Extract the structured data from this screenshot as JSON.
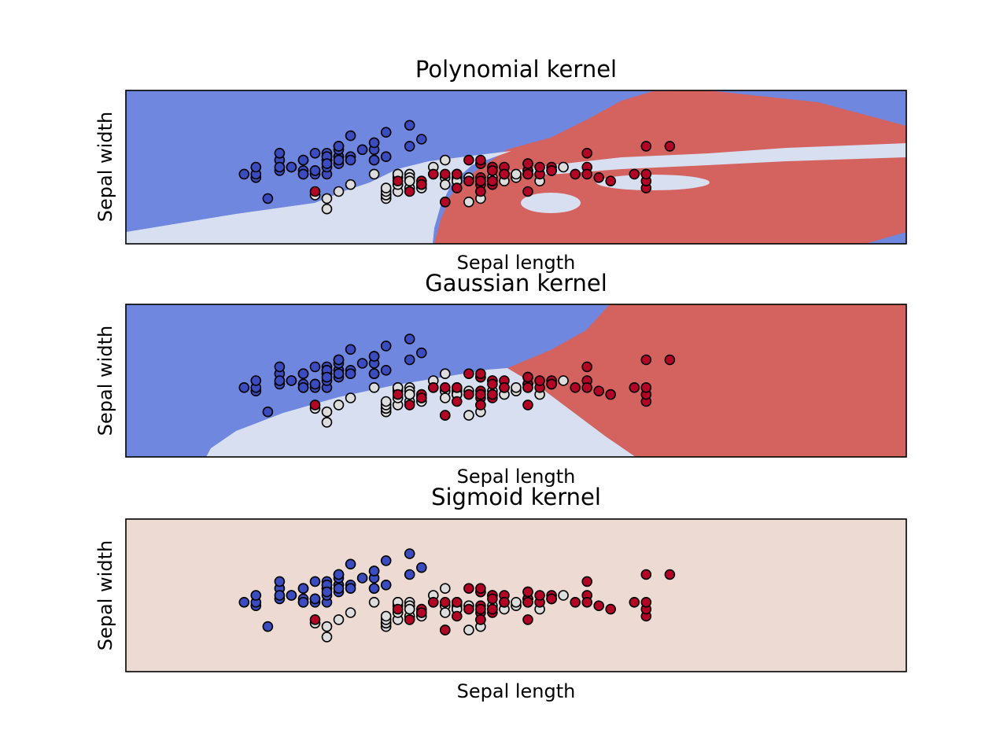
{
  "chart_data": [
    {
      "type": "scatter",
      "title": "Polynomial kernel",
      "xlabel": "Sepal length",
      "ylabel": "Sepal width",
      "xlim": [
        3.3,
        9.9
      ],
      "ylim": [
        1.0,
        5.4
      ],
      "ticks": "none",
      "decision_regions": {
        "class_0": "#6f87df",
        "class_1": "#d7dff0",
        "class_2": "#d4625f"
      }
    },
    {
      "type": "scatter",
      "title": "Gaussian kernel",
      "xlabel": "Sepal length",
      "ylabel": "Sepal width",
      "xlim": [
        3.3,
        9.9
      ],
      "ylim": [
        1.0,
        5.4
      ],
      "ticks": "none",
      "decision_regions": {
        "class_0": "#6f87df",
        "class_1": "#d7dff0",
        "class_2": "#d4625f"
      }
    },
    {
      "type": "scatter",
      "title": "Sigmoid kernel",
      "xlabel": "Sepal length",
      "ylabel": "Sepal width",
      "xlim": [
        3.3,
        9.9
      ],
      "ylim": [
        1.0,
        5.4
      ],
      "ticks": "none",
      "decision_regions": {
        "class_1": "#eddad2"
      }
    }
  ],
  "points": {
    "class_colors": [
      "#3b4cc0",
      "#dddddd",
      "#b40426"
    ],
    "edge_color": "#000000",
    "series": [
      {
        "class": 0,
        "x": [
          5.1,
          4.9,
          4.7,
          4.6,
          5.0,
          5.4,
          4.6,
          5.0,
          4.4,
          4.9,
          5.4,
          4.8,
          4.8,
          4.3,
          5.8,
          5.7,
          5.4,
          5.1,
          5.7,
          5.1,
          5.4,
          5.1,
          4.6,
          5.1,
          4.8,
          5.0,
          5.0,
          5.2,
          5.2,
          4.7,
          4.8,
          5.4,
          5.2,
          5.5,
          4.9,
          5.0,
          5.5,
          4.9,
          4.4,
          5.1,
          5.0,
          4.5,
          4.4,
          5.0,
          5.1,
          4.8,
          5.1,
          4.6,
          5.3,
          5.0
        ],
        "y": [
          3.5,
          3.0,
          3.2,
          3.1,
          3.6,
          3.9,
          3.4,
          3.4,
          2.9,
          3.1,
          3.7,
          3.4,
          3.0,
          3.0,
          4.0,
          4.4,
          3.9,
          3.5,
          3.8,
          3.8,
          3.4,
          3.7,
          3.6,
          3.3,
          3.4,
          3.0,
          3.4,
          3.5,
          3.4,
          3.2,
          3.1,
          3.4,
          4.1,
          4.2,
          3.1,
          3.2,
          3.5,
          3.6,
          3.0,
          3.4,
          3.5,
          2.3,
          3.2,
          3.5,
          3.8,
          3.0,
          3.8,
          3.2,
          3.7,
          3.3
        ]
      },
      {
        "class": 1,
        "x": [
          7.0,
          6.4,
          6.9,
          5.5,
          6.5,
          5.7,
          6.3,
          4.9,
          6.6,
          5.2,
          5.0,
          5.9,
          6.0,
          6.1,
          5.6,
          6.7,
          5.6,
          5.8,
          6.2,
          5.6,
          5.9,
          6.1,
          6.3,
          6.1,
          6.4,
          6.6,
          6.8,
          6.7,
          6.0,
          5.7,
          5.5,
          5.5,
          5.8,
          6.0,
          5.4,
          6.0,
          6.7,
          6.3,
          5.6,
          5.5,
          5.5,
          6.1,
          5.8,
          5.0,
          5.6,
          5.7,
          5.7,
          6.2,
          5.1,
          5.7
        ],
        "y": [
          3.2,
          3.2,
          3.1,
          2.3,
          2.8,
          2.8,
          3.3,
          2.4,
          2.9,
          2.7,
          2.0,
          3.0,
          2.2,
          2.9,
          2.9,
          3.1,
          3.0,
          2.7,
          2.2,
          2.5,
          3.2,
          2.8,
          2.5,
          2.8,
          2.9,
          3.0,
          2.8,
          3.0,
          2.9,
          2.6,
          2.4,
          2.4,
          2.7,
          2.7,
          3.0,
          3.4,
          3.1,
          2.3,
          3.0,
          2.5,
          2.6,
          3.0,
          2.6,
          2.3,
          2.7,
          3.0,
          2.9,
          2.9,
          2.5,
          2.8
        ]
      },
      {
        "class": 2,
        "x": [
          6.3,
          5.8,
          7.1,
          6.3,
          6.5,
          7.6,
          4.9,
          7.3,
          6.7,
          7.2,
          6.5,
          6.4,
          6.8,
          5.7,
          5.8,
          6.4,
          6.5,
          7.7,
          7.7,
          6.0,
          6.9,
          5.6,
          7.7,
          6.3,
          6.7,
          7.2,
          6.2,
          6.1,
          6.4,
          7.2,
          7.4,
          7.9,
          6.4,
          6.3,
          6.1,
          7.7,
          6.3,
          6.4,
          6.0,
          6.9,
          6.7,
          6.9,
          5.8,
          6.8,
          6.7,
          6.7,
          6.3,
          6.5,
          6.2,
          5.9
        ],
        "y": [
          3.3,
          2.7,
          3.0,
          2.9,
          3.0,
          3.0,
          2.5,
          2.9,
          2.5,
          3.6,
          3.2,
          2.7,
          3.0,
          2.5,
          2.8,
          3.2,
          3.0,
          3.8,
          2.6,
          2.2,
          3.2,
          2.8,
          2.8,
          2.7,
          3.3,
          3.2,
          2.8,
          3.0,
          2.8,
          3.0,
          2.8,
          3.8,
          2.8,
          2.8,
          2.6,
          3.0,
          3.4,
          3.1,
          3.0,
          3.1,
          3.1,
          3.1,
          2.7,
          3.2,
          3.3,
          3.0,
          2.5,
          3.0,
          3.4,
          3.0
        ]
      }
    ]
  }
}
